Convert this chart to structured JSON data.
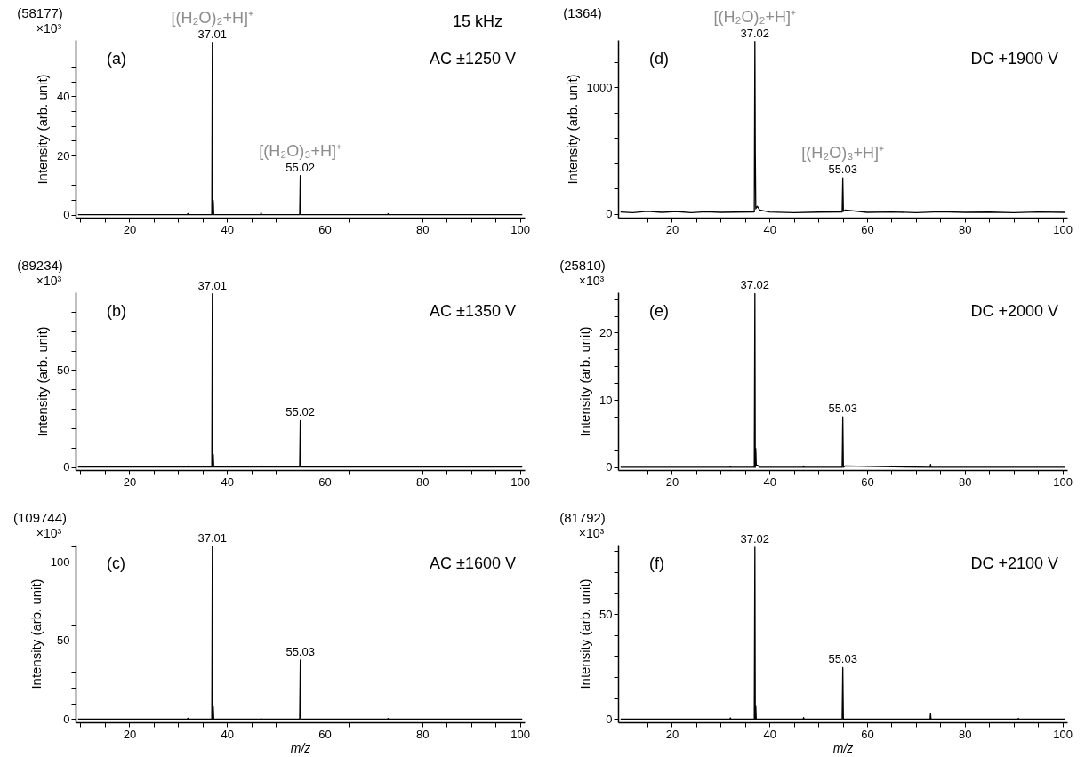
{
  "chart_data": [
    {
      "type": "line",
      "title": "(a)",
      "subtitle": "AC ±1250 V",
      "ylabel": "Intensity (arb. unit)",
      "annotations": [
        "(58177)",
        "×10³",
        "15 kHz",
        {
          "text": "37.01",
          "x": 37.01,
          "y": 58.177
        },
        {
          "text": "[(H₂O)₂+H]⁺",
          "x": 37.01,
          "y": 58.177
        },
        {
          "text": "55.02",
          "x": 55.02,
          "y": 13.2
        },
        {
          "text": "[(H₂O)₃+H]⁺",
          "x": 55.02,
          "y": 13.2
        }
      ],
      "xlim": [
        9,
        101
      ],
      "xticks": [
        {
          "value": 10,
          "label": null
        },
        {
          "value": 15,
          "label": null
        },
        20,
        {
          "value": 25,
          "label": null
        },
        {
          "value": 30,
          "label": null
        },
        {
          "value": 35,
          "label": null
        },
        40,
        {
          "value": 45,
          "label": null
        },
        {
          "value": 50,
          "label": null
        },
        {
          "value": 55,
          "label": null
        },
        60,
        {
          "value": 65,
          "label": null
        },
        {
          "value": 70,
          "label": null
        },
        {
          "value": 75,
          "label": null
        },
        80,
        {
          "value": 85,
          "label": null
        },
        {
          "value": 90,
          "label": null
        },
        {
          "value": 95,
          "label": null
        },
        100
      ],
      "ylim": [
        -1,
        59
      ],
      "yticks": [
        0,
        {
          "value": 5,
          "label": null
        },
        {
          "value": 10,
          "label": null
        },
        {
          "value": 15,
          "label": null
        },
        20,
        {
          "value": 25,
          "label": null
        },
        {
          "value": 30,
          "label": null
        },
        {
          "value": 35,
          "label": null
        },
        40,
        {
          "value": 45,
          "label": null
        },
        {
          "value": 50,
          "label": null
        },
        {
          "value": 55,
          "label": null
        }
      ],
      "grid": false,
      "marker": "none",
      "series": [
        {
          "color": "#000000",
          "x": [
            9.5,
            31.9,
            32,
            32.1,
            36.9,
            37.01,
            37.1,
            37.2,
            37.3,
            37.6,
            46.9,
            47,
            47.1,
            54.9,
            55.02,
            55.15,
            72.9,
            73,
            73.1,
            100.5
          ],
          "values": [
            0,
            0,
            0.4,
            0,
            0,
            58.177,
            0,
            4.8,
            0,
            0,
            0,
            0.7,
            0,
            0,
            13.2,
            0,
            0,
            0.3,
            0,
            0
          ]
        }
      ]
    },
    {
      "type": "line",
      "title": "(b)",
      "subtitle": "AC ±1350 V",
      "ylabel": "Intensity (arb. unit)",
      "annotations": [
        "(89234)",
        "×10³",
        {
          "text": "37.01",
          "x": 37.01,
          "y": 89.234
        },
        {
          "text": "55.02",
          "x": 55.02,
          "y": 23.9
        }
      ],
      "xlim": [
        9,
        101
      ],
      "xticks": [
        {
          "value": 10,
          "label": null
        },
        {
          "value": 15,
          "label": null
        },
        20,
        {
          "value": 25,
          "label": null
        },
        {
          "value": 30,
          "label": null
        },
        {
          "value": 35,
          "label": null
        },
        40,
        {
          "value": 45,
          "label": null
        },
        {
          "value": 50,
          "label": null
        },
        {
          "value": 55,
          "label": null
        },
        60,
        {
          "value": 65,
          "label": null
        },
        {
          "value": 70,
          "label": null
        },
        {
          "value": 75,
          "label": null
        },
        80,
        {
          "value": 85,
          "label": null
        },
        {
          "value": 90,
          "label": null
        },
        {
          "value": 95,
          "label": null
        },
        100
      ],
      "ylim": [
        -1.5,
        90
      ],
      "yticks": [
        0,
        {
          "value": 10,
          "label": null
        },
        {
          "value": 20,
          "label": null
        },
        {
          "value": 30,
          "label": null
        },
        {
          "value": 40,
          "label": null
        },
        50,
        {
          "value": 60,
          "label": null
        },
        {
          "value": 70,
          "label": null
        },
        {
          "value": 80,
          "label": null
        }
      ],
      "grid": false,
      "marker": "none",
      "series": [
        {
          "color": "#000000",
          "x": [
            9.5,
            31.9,
            32,
            32.1,
            36.9,
            37.01,
            37.1,
            37.2,
            37.3,
            37.6,
            46.9,
            47,
            47.1,
            54.9,
            55.02,
            55.15,
            72.9,
            73,
            73.1,
            100.5
          ],
          "values": [
            0,
            0,
            0.6,
            0,
            0,
            89.234,
            0,
            6.5,
            0,
            0,
            0,
            0.8,
            0,
            0,
            23.9,
            0,
            0,
            0.5,
            0,
            0
          ]
        }
      ]
    },
    {
      "type": "line",
      "title": "(c)",
      "subtitle": "AC ±1600 V",
      "xlabel": "m/z",
      "ylabel": "Intensity (arb. unit)",
      "annotations": [
        "(109744)",
        "×10³",
        {
          "text": "37.01",
          "x": 37.01,
          "y": 109.744
        },
        {
          "text": "55.03",
          "x": 55.03,
          "y": 37.6
        }
      ],
      "xlim": [
        9,
        101
      ],
      "xticks": [
        {
          "value": 10,
          "label": null
        },
        {
          "value": 15,
          "label": null
        },
        20,
        {
          "value": 25,
          "label": null
        },
        {
          "value": 30,
          "label": null
        },
        {
          "value": 35,
          "label": null
        },
        40,
        {
          "value": 45,
          "label": null
        },
        {
          "value": 50,
          "label": null
        },
        {
          "value": 55,
          "label": null
        },
        60,
        {
          "value": 65,
          "label": null
        },
        {
          "value": 70,
          "label": null
        },
        {
          "value": 75,
          "label": null
        },
        80,
        {
          "value": 85,
          "label": null
        },
        {
          "value": 90,
          "label": null
        },
        {
          "value": 95,
          "label": null
        },
        100
      ],
      "ylim": [
        -2,
        111
      ],
      "yticks": [
        0,
        {
          "value": 10,
          "label": null
        },
        {
          "value": 20,
          "label": null
        },
        {
          "value": 30,
          "label": null
        },
        {
          "value": 40,
          "label": null
        },
        50,
        {
          "value": 60,
          "label": null
        },
        {
          "value": 70,
          "label": null
        },
        {
          "value": 80,
          "label": null
        },
        {
          "value": 90,
          "label": null
        },
        100,
        {
          "value": 110,
          "label": null
        }
      ],
      "grid": false,
      "marker": "none",
      "series": [
        {
          "color": "#000000",
          "x": [
            9.5,
            31.9,
            32,
            32.1,
            36.9,
            37.01,
            37.1,
            37.2,
            37.3,
            37.6,
            46.9,
            47,
            47.1,
            54.9,
            55.03,
            55.15,
            72.9,
            73,
            73.1,
            100.5
          ],
          "values": [
            0,
            0,
            0.6,
            0,
            0,
            109.744,
            0,
            8,
            0,
            0,
            0,
            0.5,
            0,
            0,
            37.6,
            0,
            0,
            0.5,
            0,
            0
          ]
        }
      ]
    },
    {
      "type": "line",
      "title": "(d)",
      "subtitle": "DC +1900 V",
      "ylabel": "Intensity (arb. unit)",
      "annotations": [
        "(1364)",
        {
          "text": "37.02",
          "x": 37.02,
          "y": 1364
        },
        {
          "text": "[(H₂O)₂+H]⁺",
          "x": 37.02,
          "y": 1364
        },
        {
          "text": "55.03",
          "x": 55.03,
          "y": 285
        },
        {
          "text": "[(H₂O)₃+H]⁺",
          "x": 55.03,
          "y": 285
        }
      ],
      "xlim": [
        9,
        101
      ],
      "xticks": [
        {
          "value": 10,
          "label": null
        },
        {
          "value": 15,
          "label": null
        },
        20,
        {
          "value": 25,
          "label": null
        },
        {
          "value": 30,
          "label": null
        },
        {
          "value": 35,
          "label": null
        },
        40,
        {
          "value": 45,
          "label": null
        },
        {
          "value": 50,
          "label": null
        },
        {
          "value": 55,
          "label": null
        },
        60,
        {
          "value": 65,
          "label": null
        },
        {
          "value": 70,
          "label": null
        },
        {
          "value": 75,
          "label": null
        },
        80,
        {
          "value": 85,
          "label": null
        },
        {
          "value": 90,
          "label": null
        },
        {
          "value": 95,
          "label": null
        },
        100
      ],
      "ylim": [
        -30,
        1375
      ],
      "yticks": [
        0,
        {
          "value": 200,
          "label": null
        },
        {
          "value": 400,
          "label": null
        },
        {
          "value": 600,
          "label": null
        },
        {
          "value": 800,
          "label": null
        },
        1000,
        {
          "value": 1200,
          "label": null
        }
      ],
      "grid": false,
      "marker": "none",
      "series": [
        {
          "color": "#000000",
          "x": [
            9.5,
            12,
            15,
            18,
            21,
            24,
            27,
            30,
            33,
            36.9,
            37.02,
            37.1,
            37.2,
            37.5,
            38,
            40,
            45,
            50,
            54.9,
            55.03,
            55.15,
            55.5,
            60,
            65,
            70,
            75,
            80,
            85,
            90,
            95,
            100.5
          ],
          "values": [
            15,
            10,
            20,
            12,
            18,
            10,
            16,
            12,
            14,
            15,
            1364,
            484,
            40,
            60,
            30,
            15,
            10,
            14,
            15,
            285,
            20,
            30,
            12,
            15,
            10,
            16,
            12,
            14,
            10,
            15,
            12
          ]
        }
      ]
    },
    {
      "type": "line",
      "title": "(e)",
      "subtitle": "DC +2000 V",
      "ylabel": "Intensity (arb. unit)",
      "annotations": [
        "(25810)",
        "×10³",
        {
          "text": "37.02",
          "x": 37.02,
          "y": 25.81
        },
        {
          "text": "55.03",
          "x": 55.03,
          "y": 7.5
        }
      ],
      "xlim": [
        9,
        101
      ],
      "xticks": [
        {
          "value": 10,
          "label": null
        },
        {
          "value": 15,
          "label": null
        },
        20,
        {
          "value": 25,
          "label": null
        },
        {
          "value": 30,
          "label": null
        },
        {
          "value": 35,
          "label": null
        },
        40,
        {
          "value": 45,
          "label": null
        },
        {
          "value": 50,
          "label": null
        },
        {
          "value": 55,
          "label": null
        },
        60,
        {
          "value": 65,
          "label": null
        },
        {
          "value": 70,
          "label": null
        },
        {
          "value": 75,
          "label": null
        },
        80,
        {
          "value": 85,
          "label": null
        },
        {
          "value": 90,
          "label": null
        },
        {
          "value": 95,
          "label": null
        },
        100
      ],
      "ylim": [
        -0.4,
        26
      ],
      "yticks": [
        0,
        {
          "value": 2.5,
          "label": null
        },
        {
          "value": 5,
          "label": null
        },
        {
          "value": 7.5,
          "label": null
        },
        10,
        {
          "value": 12.5,
          "label": null
        },
        {
          "value": 15,
          "label": null
        },
        {
          "value": 17.5,
          "label": null
        },
        20,
        {
          "value": 22.5,
          "label": null
        },
        {
          "value": 25,
          "label": null
        }
      ],
      "grid": false,
      "marker": "none",
      "series": [
        {
          "color": "#000000",
          "x": [
            9.5,
            31.9,
            32,
            32.1,
            36.9,
            37.02,
            37.1,
            37.2,
            37.3,
            37.6,
            38,
            46.9,
            47,
            47.1,
            54.9,
            55.03,
            55.15,
            55.5,
            72.9,
            73,
            73.1,
            100.5
          ],
          "values": [
            0,
            0,
            0.15,
            0,
            0,
            25.81,
            0,
            2.8,
            0.3,
            0.3,
            0,
            0,
            0.2,
            0,
            0,
            7.5,
            0,
            0.2,
            0,
            0.45,
            0,
            0
          ]
        }
      ]
    },
    {
      "type": "line",
      "title": "(f)",
      "subtitle": "DC +2100 V",
      "xlabel": "m/z",
      "ylabel": "Intensity (arb. unit)",
      "annotations": [
        "(81792)",
        "×10³",
        {
          "text": "37.02",
          "x": 37.02,
          "y": 81.792
        },
        {
          "text": "55.03",
          "x": 55.03,
          "y": 24.5
        }
      ],
      "xlim": [
        9,
        101
      ],
      "xticks": [
        {
          "value": 10,
          "label": null
        },
        {
          "value": 15,
          "label": null
        },
        20,
        {
          "value": 25,
          "label": null
        },
        {
          "value": 30,
          "label": null
        },
        {
          "value": 35,
          "label": null
        },
        40,
        {
          "value": 45,
          "label": null
        },
        {
          "value": 50,
          "label": null
        },
        {
          "value": 55,
          "label": null
        },
        60,
        {
          "value": 65,
          "label": null
        },
        {
          "value": 70,
          "label": null
        },
        {
          "value": 75,
          "label": null
        },
        80,
        {
          "value": 85,
          "label": null
        },
        {
          "value": 90,
          "label": null
        },
        {
          "value": 95,
          "label": null
        },
        100
      ],
      "ylim": [
        -1.5,
        83
      ],
      "yticks": [
        0,
        {
          "value": 10,
          "label": null
        },
        {
          "value": 20,
          "label": null
        },
        {
          "value": 30,
          "label": null
        },
        {
          "value": 40,
          "label": null
        },
        50,
        {
          "value": 60,
          "label": null
        },
        {
          "value": 70,
          "label": null
        },
        {
          "value": 80,
          "label": null
        }
      ],
      "grid": false,
      "marker": "none",
      "series": [
        {
          "color": "#000000",
          "x": [
            9.5,
            31.9,
            32,
            32.1,
            36.9,
            37.02,
            37.1,
            37.2,
            37.3,
            37.6,
            46.9,
            47,
            47.1,
            54.9,
            55.03,
            55.15,
            72.9,
            73,
            73.1,
            90.9,
            91,
            91.1,
            100.5
          ],
          "values": [
            0,
            0,
            0.6,
            0,
            0,
            81.792,
            0,
            6.2,
            0,
            0,
            0,
            0.8,
            0,
            0,
            24.5,
            0,
            0,
            2.8,
            0,
            0,
            0.4,
            0,
            0
          ]
        }
      ]
    }
  ]
}
